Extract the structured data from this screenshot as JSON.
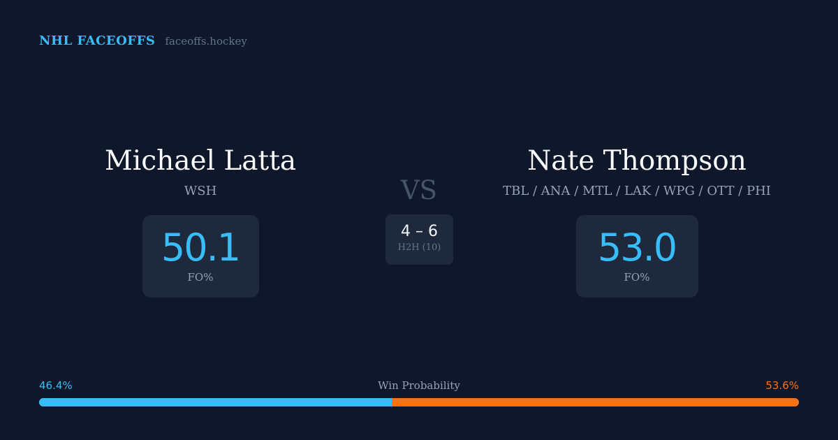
{
  "brand": {
    "name": "NHL FACEOFFS",
    "url": "faceoffs.hockey"
  },
  "colors": {
    "background": "#0f172a",
    "accent": "#38bdf8",
    "opponent": "#f97316",
    "card": "#1e293b"
  },
  "player_left": {
    "name": "Michael Latta",
    "team": "WSH",
    "stat_value": "50.1",
    "stat_label": "FO%"
  },
  "player_right": {
    "name": "Nate Thompson",
    "team": "TBL / ANA / MTL / LAK / WPG / OTT / PHI",
    "stat_value": "53.0",
    "stat_label": "FO%"
  },
  "vs_label": "VS",
  "h2h": {
    "score": "4 – 6",
    "label": "H2H (10)"
  },
  "win_probability": {
    "title": "Win Probability",
    "left_label": "46.4%",
    "right_label": "53.6%",
    "left_value": 46.4,
    "right_value": 53.6
  }
}
